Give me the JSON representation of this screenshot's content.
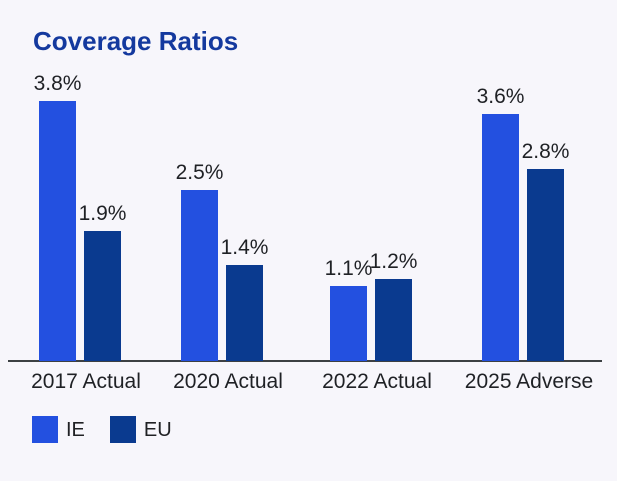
{
  "title": "Coverage Ratios",
  "colors": {
    "background": "#f7f6fb",
    "title_text": "#14399e",
    "axis_line": "#3c4043",
    "label_text": "#1f2125",
    "series_ie": "#2350e0",
    "series_eu": "#0a3a8f"
  },
  "legend": {
    "items": [
      {
        "label": "IE",
        "color": "#2350e0"
      },
      {
        "label": "EU",
        "color": "#0a3a8f"
      }
    ]
  },
  "chart_data": {
    "type": "bar",
    "title": "Coverage Ratios",
    "categories": [
      "2017 Actual",
      "2020 Actual",
      "2022 Actual",
      "2025 Adverse"
    ],
    "series": [
      {
        "name": "IE",
        "color": "#2350e0",
        "values": [
          3.8,
          2.5,
          1.1,
          3.6
        ],
        "labels": [
          "3.8%",
          "2.5%",
          "1.1%",
          "3.6%"
        ]
      },
      {
        "name": "EU",
        "color": "#0a3a8f",
        "values": [
          1.9,
          1.4,
          1.2,
          2.8
        ],
        "labels": [
          "1.9%",
          "1.4%",
          "1.2%",
          "2.8%"
        ]
      }
    ],
    "xlabel": "",
    "ylabel": "",
    "ylim": [
      0,
      4.2
    ],
    "grid": false,
    "value_labels_shown": true,
    "legend_position": "bottom-left"
  }
}
